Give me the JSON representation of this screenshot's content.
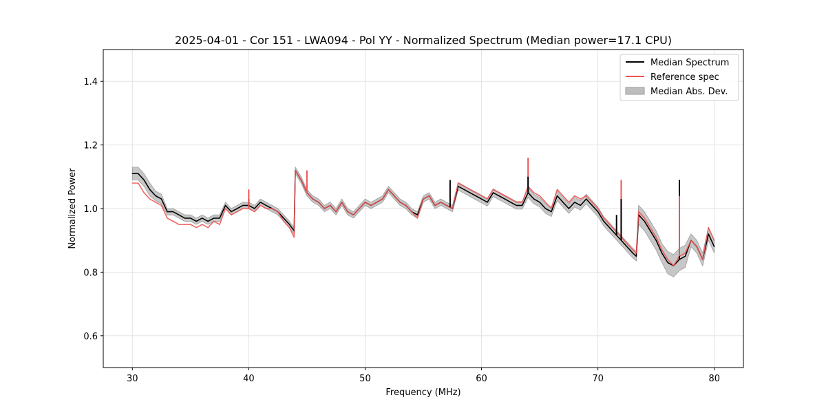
{
  "chart_data": {
    "type": "line",
    "title": "2025-04-01 - Cor 151 - LWA094 - Pol YY - Normalized Spectrum (Median power=17.1 CPU)",
    "xlabel": "Frequency (MHz)",
    "ylabel": "Normalized Power",
    "xlim": [
      27.5,
      82.5
    ],
    "ylim": [
      0.5,
      1.5
    ],
    "xticks": [
      30,
      40,
      50,
      60,
      70,
      80
    ],
    "yticks": [
      0.6,
      0.8,
      1.0,
      1.2,
      1.4
    ],
    "xtick_labels": [
      "30",
      "40",
      "50",
      "60",
      "70",
      "80"
    ],
    "ytick_labels": [
      "0.6",
      "0.8",
      "1.0",
      "1.2",
      "1.4"
    ],
    "grid": true,
    "legend_position": "top-right",
    "legend": [
      "Median Spectrum",
      "Reference spec",
      "Median Abs. Dev."
    ],
    "colors": {
      "median": "#000000",
      "reference": "#ee5555",
      "mad_fill": "#bdbdbd",
      "mad_edge": "#9a9a9a",
      "grid": "#e3e3e3"
    },
    "x": [
      30.0,
      30.5,
      31.0,
      31.5,
      32.0,
      32.5,
      33.0,
      33.5,
      34.0,
      34.5,
      35.0,
      35.5,
      36.0,
      36.5,
      37.0,
      37.5,
      38.0,
      38.5,
      39.0,
      39.5,
      40.0,
      40.5,
      41.0,
      41.5,
      42.0,
      42.5,
      43.0,
      43.5,
      43.9,
      44.0,
      44.5,
      45.0,
      45.5,
      46.0,
      46.5,
      47.0,
      47.5,
      48.0,
      48.5,
      49.0,
      49.5,
      50.0,
      50.5,
      51.0,
      51.5,
      52.0,
      52.5,
      53.0,
      53.5,
      54.0,
      54.5,
      55.0,
      55.5,
      56.0,
      56.5,
      57.0,
      57.5,
      58.0,
      58.5,
      59.0,
      59.5,
      60.0,
      60.5,
      61.0,
      61.5,
      62.0,
      62.5,
      63.0,
      63.5,
      64.0,
      64.5,
      65.0,
      65.5,
      66.0,
      66.5,
      67.0,
      67.5,
      68.0,
      68.5,
      69.0,
      69.5,
      70.0,
      70.5,
      71.0,
      71.5,
      72.0,
      72.5,
      73.0,
      73.3,
      73.5,
      74.0,
      74.5,
      75.0,
      75.5,
      76.0,
      76.5,
      77.0,
      77.5,
      78.0,
      78.5,
      79.0,
      79.5,
      80.0
    ],
    "series": [
      {
        "name": "Median Spectrum",
        "values": [
          1.11,
          1.11,
          1.09,
          1.06,
          1.04,
          1.03,
          0.99,
          0.99,
          0.98,
          0.97,
          0.97,
          0.96,
          0.97,
          0.96,
          0.97,
          0.97,
          1.01,
          0.99,
          1.0,
          1.01,
          1.01,
          1.0,
          1.02,
          1.01,
          1.0,
          0.99,
          0.97,
          0.95,
          0.93,
          1.12,
          1.09,
          1.05,
          1.03,
          1.02,
          1.0,
          1.01,
          0.99,
          1.02,
          0.99,
          0.98,
          1.0,
          1.02,
          1.01,
          1.02,
          1.03,
          1.06,
          1.04,
          1.02,
          1.01,
          0.99,
          0.98,
          1.03,
          1.04,
          1.01,
          1.02,
          1.01,
          1.0,
          1.07,
          1.06,
          1.05,
          1.04,
          1.03,
          1.02,
          1.05,
          1.04,
          1.03,
          1.02,
          1.01,
          1.01,
          1.05,
          1.03,
          1.02,
          1.0,
          0.99,
          1.04,
          1.02,
          1.0,
          1.02,
          1.01,
          1.03,
          1.01,
          0.99,
          0.96,
          0.94,
          0.92,
          0.9,
          0.88,
          0.86,
          0.85,
          0.98,
          0.96,
          0.93,
          0.9,
          0.86,
          0.83,
          0.82,
          0.84,
          0.85,
          0.9,
          0.88,
          0.84,
          0.92,
          0.88
        ]
      },
      {
        "name": "Reference spec",
        "values": [
          1.08,
          1.08,
          1.05,
          1.03,
          1.02,
          1.01,
          0.97,
          0.96,
          0.95,
          0.95,
          0.95,
          0.94,
          0.95,
          0.94,
          0.96,
          0.95,
          1.0,
          0.98,
          0.99,
          1.0,
          1.0,
          0.99,
          1.01,
          1.0,
          1.0,
          0.99,
          0.96,
          0.94,
          0.91,
          1.12,
          1.09,
          1.05,
          1.03,
          1.02,
          1.0,
          1.01,
          0.99,
          1.02,
          0.99,
          0.98,
          1.0,
          1.02,
          1.01,
          1.02,
          1.03,
          1.06,
          1.04,
          1.02,
          1.01,
          0.99,
          0.97,
          1.03,
          1.04,
          1.01,
          1.02,
          1.01,
          1.0,
          1.08,
          1.07,
          1.06,
          1.05,
          1.04,
          1.03,
          1.06,
          1.05,
          1.04,
          1.03,
          1.02,
          1.02,
          1.07,
          1.05,
          1.04,
          1.02,
          1.0,
          1.06,
          1.04,
          1.02,
          1.04,
          1.03,
          1.04,
          1.02,
          1.0,
          0.97,
          0.95,
          0.93,
          0.91,
          0.89,
          0.87,
          0.86,
          0.99,
          0.97,
          0.94,
          0.91,
          0.87,
          0.84,
          0.82,
          0.85,
          0.86,
          0.9,
          0.88,
          0.84,
          0.94,
          0.9
        ]
      },
      {
        "name": "Median Abs. Dev.",
        "values": [
          0.02,
          0.02,
          0.02,
          0.02,
          0.015,
          0.015,
          0.01,
          0.01,
          0.01,
          0.01,
          0.01,
          0.01,
          0.01,
          0.01,
          0.01,
          0.01,
          0.01,
          0.01,
          0.01,
          0.01,
          0.01,
          0.01,
          0.01,
          0.01,
          0.01,
          0.01,
          0.01,
          0.01,
          0.01,
          0.01,
          0.01,
          0.01,
          0.01,
          0.01,
          0.01,
          0.01,
          0.01,
          0.01,
          0.01,
          0.01,
          0.01,
          0.01,
          0.01,
          0.01,
          0.01,
          0.01,
          0.01,
          0.01,
          0.01,
          0.01,
          0.01,
          0.01,
          0.01,
          0.01,
          0.01,
          0.01,
          0.01,
          0.012,
          0.012,
          0.012,
          0.012,
          0.012,
          0.012,
          0.012,
          0.012,
          0.012,
          0.012,
          0.012,
          0.012,
          0.015,
          0.015,
          0.015,
          0.015,
          0.015,
          0.015,
          0.015,
          0.015,
          0.015,
          0.015,
          0.015,
          0.015,
          0.015,
          0.015,
          0.015,
          0.015,
          0.015,
          0.015,
          0.015,
          0.015,
          0.03,
          0.03,
          0.03,
          0.03,
          0.03,
          0.035,
          0.035,
          0.035,
          0.035,
          0.02,
          0.02,
          0.02,
          0.02,
          0.02
        ]
      }
    ],
    "spikes": [
      {
        "series": "Median Spectrum",
        "x": 40.0,
        "y": 1.03
      },
      {
        "series": "Reference spec",
        "x": 40.0,
        "y": 1.06
      },
      {
        "series": "Reference spec",
        "x": 45.0,
        "y": 1.12
      },
      {
        "series": "Median Spectrum",
        "x": 57.3,
        "y": 1.09
      },
      {
        "series": "Reference spec",
        "x": 64.0,
        "y": 1.16
      },
      {
        "series": "Median Spectrum",
        "x": 64.0,
        "y": 1.1
      },
      {
        "series": "Median Spectrum",
        "x": 71.6,
        "y": 0.98
      },
      {
        "series": "Reference spec",
        "x": 72.0,
        "y": 1.09
      },
      {
        "series": "Median Spectrum",
        "x": 72.0,
        "y": 1.03
      },
      {
        "series": "Median Spectrum",
        "x": 77.0,
        "y": 1.09
      },
      {
        "series": "Reference spec",
        "x": 77.0,
        "y": 1.04
      }
    ]
  }
}
